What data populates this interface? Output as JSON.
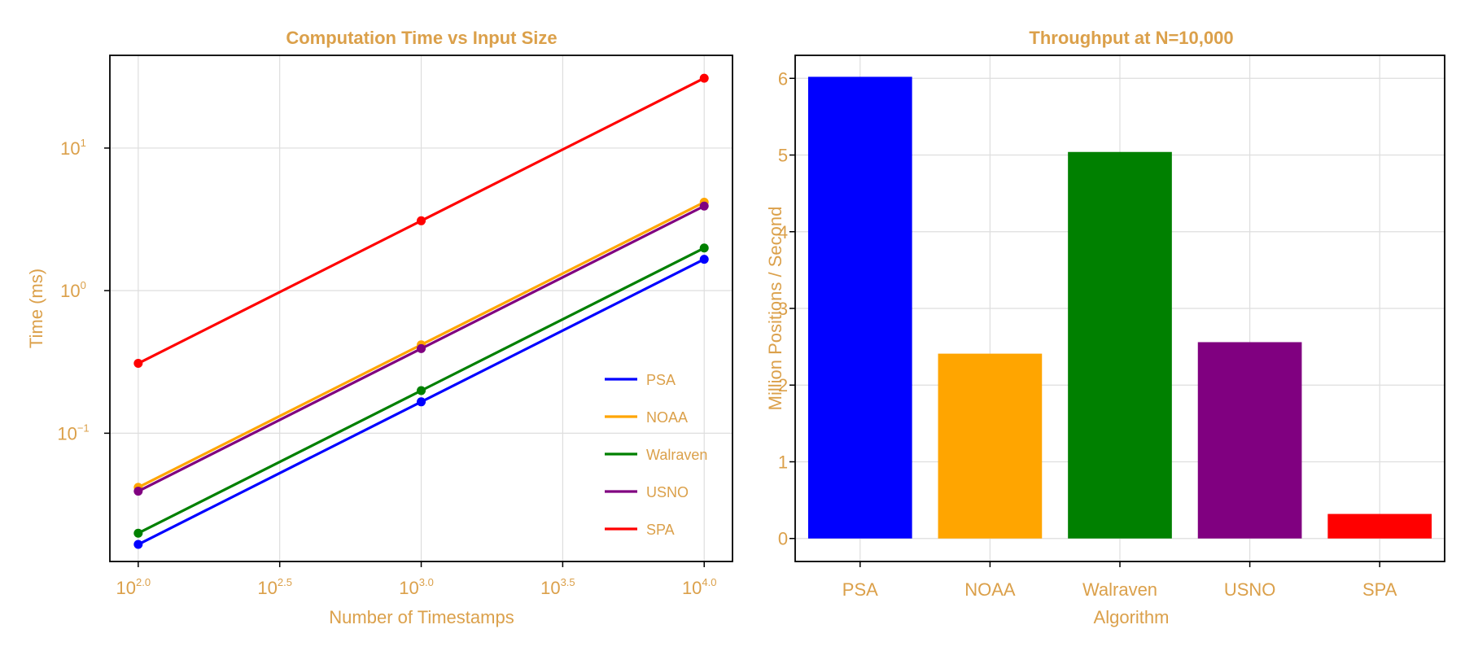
{
  "colors": {
    "text": "#dba04a",
    "grid": "#dedede",
    "axis": "#000000"
  },
  "charts": [
    {
      "type": "line",
      "title": "Computation Time vs Input Size",
      "xlabel": "Number of Timestamps",
      "ylabel": "Time (ms)",
      "xscale": "log10",
      "yscale": "log10",
      "x": [
        100,
        1000,
        10000
      ],
      "x_tick_labels": [
        {
          "base": "10",
          "exp": "2.0"
        },
        {
          "base": "10",
          "exp": "2.5"
        },
        {
          "base": "10",
          "exp": "3.0"
        },
        {
          "base": "10",
          "exp": "3.5"
        },
        {
          "base": "10",
          "exp": "4.0"
        }
      ],
      "y_tick_labels": [
        {
          "base": "10",
          "exp": "−1"
        },
        {
          "base": "10",
          "exp": "0"
        },
        {
          "base": "10",
          "exp": "1"
        }
      ],
      "xlim": [
        79.4,
        12589
      ],
      "ylim": [
        0.0126,
        44.7
      ],
      "grid": true,
      "legend_position": "bottom-right",
      "series": [
        {
          "name": "PSA",
          "color": "#0000ff",
          "values": [
            0.0166,
            0.166,
            1.66
          ]
        },
        {
          "name": "NOAA",
          "color": "#ffa500",
          "values": [
            0.0417,
            0.417,
            4.17
          ]
        },
        {
          "name": "Walraven",
          "color": "#008000",
          "values": [
            0.0199,
            0.199,
            1.99
          ]
        },
        {
          "name": "USNO",
          "color": "#800080",
          "values": [
            0.0392,
            0.392,
            3.92
          ]
        },
        {
          "name": "SPA",
          "color": "#ff0000",
          "values": [
            0.309,
            3.09,
            30.9
          ]
        }
      ]
    },
    {
      "type": "bar",
      "title": "Throughput at N=10,000",
      "xlabel": "Algorithm",
      "ylabel": "Million Positions / Second",
      "categories": [
        "PSA",
        "NOAA",
        "Walraven",
        "USNO",
        "SPA"
      ],
      "values": [
        6.02,
        2.41,
        5.04,
        2.56,
        0.32
      ],
      "colors": [
        "#0000ff",
        "#ffa500",
        "#008000",
        "#800080",
        "#ff0000"
      ],
      "y_tick_labels": [
        "0",
        "1",
        "2",
        "3",
        "4",
        "5",
        "6"
      ],
      "y_ticks": [
        0,
        1,
        2,
        3,
        4,
        5,
        6
      ],
      "ylim": [
        -0.3,
        6.3
      ],
      "grid": true
    }
  ]
}
